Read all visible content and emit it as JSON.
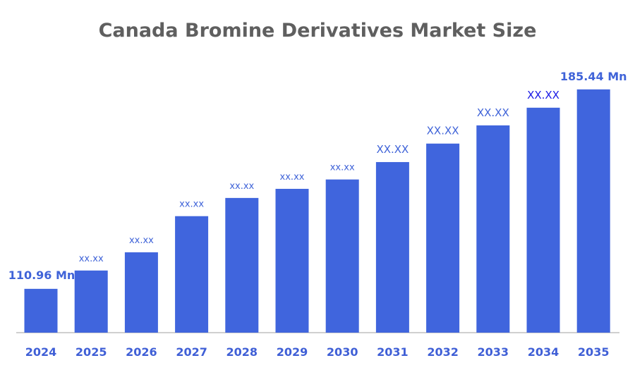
{
  "chart_data": {
    "type": "bar",
    "title": "Canada Bromine Derivatives Market Size",
    "xlabel": "",
    "ylabel": "",
    "categories": [
      "2024",
      "2025",
      "2026",
      "2027",
      "2028",
      "2029",
      "2030",
      "2031",
      "2032",
      "2033",
      "2034",
      "2035"
    ],
    "values": [
      110.96,
      117.8,
      124.6,
      138.1,
      144.9,
      148.3,
      151.8,
      158.3,
      165.2,
      172.0,
      178.6,
      185.44
    ],
    "data_labels": [
      "110.96 Mn",
      "xx.xx",
      "xx.xx",
      "xx.xx",
      "xx.xx",
      "xx.xx",
      "xx.xx",
      "XX.XX",
      "XX.XX",
      "XX.XX",
      "XX.XX",
      "185.44 Mn"
    ],
    "unit": "Mn",
    "ylim": [
      94.6,
      190
    ],
    "grid": false,
    "legend": "none",
    "colors": {
      "bar": "#4065dd",
      "label": "#3f63d8",
      "highlight_label": "#1a1ae6",
      "title": "#5f5f5f",
      "axis": "#d0d0d0"
    }
  }
}
